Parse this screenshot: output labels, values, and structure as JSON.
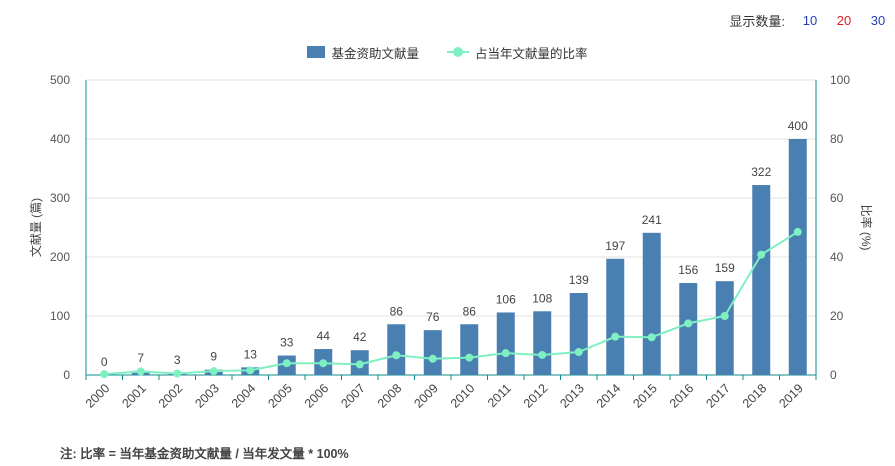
{
  "controls": {
    "label": "显示数量:",
    "options": [
      {
        "label": "10",
        "color": "#1f3fbf"
      },
      {
        "label": "20",
        "color": "#e02020"
      },
      {
        "label": "30",
        "color": "#1f3fbf"
      }
    ]
  },
  "footnote": "注: 比率 = 当年基金资助文献量 / 当年发文量 * 100%",
  "colors": {
    "bar": "#4a80b1",
    "line": "#7ff0c2",
    "axis": "#0e8c8c",
    "grid": "#e3e3e3"
  },
  "chart_data": {
    "type": "bar",
    "categories": [
      "2000",
      "2001",
      "2002",
      "2003",
      "2004",
      "2005",
      "2006",
      "2007",
      "2008",
      "2009",
      "2010",
      "2011",
      "2012",
      "2013",
      "2014",
      "2015",
      "2016",
      "2017",
      "2018",
      "2019"
    ],
    "series": [
      {
        "name": "基金资助文献量",
        "type": "bar",
        "axis": "left",
        "values": [
          0,
          7,
          3,
          9,
          13,
          33,
          44,
          42,
          86,
          76,
          86,
          106,
          108,
          139,
          197,
          241,
          156,
          159,
          322,
          400
        ]
      },
      {
        "name": "占当年文献量的比率",
        "type": "line",
        "axis": "right",
        "values": [
          0.3,
          1.2,
          0.5,
          1.3,
          1.6,
          4.0,
          4.0,
          3.6,
          6.7,
          5.5,
          5.9,
          7.4,
          6.8,
          7.8,
          13.0,
          12.8,
          17.5,
          20.0,
          40.8,
          48.5
        ]
      }
    ],
    "ylabel": "文献量 (篇)",
    "y2label": "比率 (%)",
    "ylim": [
      0,
      500
    ],
    "y2lim": [
      0,
      100
    ],
    "yticks": [
      0,
      100,
      200,
      300,
      400,
      500
    ],
    "y2ticks": [
      0,
      20,
      40,
      60,
      80,
      100
    ],
    "grid": true,
    "legend_position": "top-center"
  }
}
